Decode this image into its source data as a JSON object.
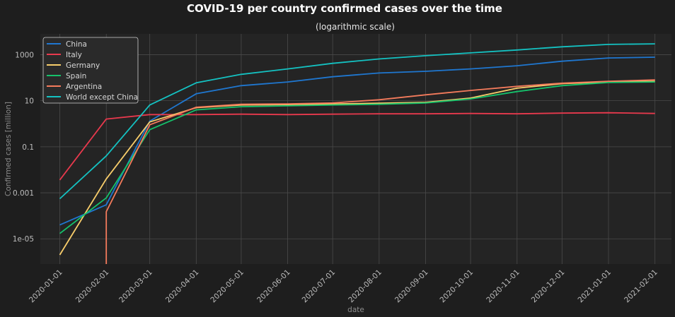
{
  "chart_data": {
    "type": "line",
    "title": "COVID-19 per country confirmed cases over the time",
    "subtitle": "(logarithmic scale)",
    "xlabel": "date",
    "ylabel": "Confirmed cases [million]",
    "yscale": "log",
    "ylim": [
      8e-07,
      8000
    ],
    "xlim": [
      "2019-12-19",
      "2021-02-12"
    ],
    "grid": true,
    "legend_position": "top-left",
    "x_ticks": [
      "2020-01-01",
      "2020-02-01",
      "2020-03-01",
      "2020-04-01",
      "2020-05-01",
      "2020-06-01",
      "2020-07-01",
      "2020-08-01",
      "2020-09-01",
      "2020-10-01",
      "2020-11-01",
      "2020-12-01",
      "2021-01-01",
      "2021-02-01"
    ],
    "y_ticks": [
      {
        "value": 1e-05,
        "label": "1e-05"
      },
      {
        "value": 0.001,
        "label": "0.001"
      },
      {
        "value": 0.1,
        "label": "0.1"
      },
      {
        "value": 10,
        "label": "10"
      },
      {
        "value": 1000,
        "label": "1000"
      }
    ],
    "x": [
      "2020-01-01",
      "2020-02-01",
      "2020-03-01",
      "2020-04-01",
      "2020-05-01",
      "2020-06-01",
      "2020-07-01",
      "2020-08-01",
      "2020-09-01",
      "2020-10-01",
      "2020-11-01",
      "2020-12-01",
      "2021-01-01",
      "2021-02-01"
    ],
    "series": [
      {
        "name": "China",
        "color": "#1f77d0",
        "values": [
          4e-05,
          0.0003,
          1.3,
          20,
          45,
          65,
          110,
          160,
          190,
          240,
          330,
          520,
          720,
          780
        ]
      },
      {
        "name": "Italy",
        "color": "#e8394d",
        "values": [
          0.0036,
          1.6,
          2.5,
          2.5,
          2.6,
          2.5,
          2.6,
          2.7,
          2.7,
          2.8,
          2.7,
          2.9,
          3.0,
          2.8
        ]
      },
      {
        "name": "Germany",
        "color": "#f8cd6b",
        "values": [
          2e-06,
          0.004,
          1.2,
          5,
          6.5,
          6.8,
          7.2,
          7.8,
          8.5,
          13,
          35,
          55,
          65,
          70
        ]
      },
      {
        "name": "Spain",
        "color": "#15c26b",
        "values": [
          1.7e-05,
          0.0006,
          0.55,
          4,
          5.5,
          6,
          6.5,
          7,
          8,
          12,
          25,
          45,
          62,
          65
        ]
      },
      {
        "name": "Argentina",
        "color": "#f47b5c",
        "values": [
          null,
          0.00015,
          0.9,
          5.2,
          7,
          7.3,
          8,
          11,
          18,
          28,
          42,
          58,
          70,
          80
        ]
      },
      {
        "name": "World except China",
        "color": "#14c2c2",
        "values": [
          0.00055,
          0.04,
          6.5,
          60,
          140,
          240,
          420,
          650,
          900,
          1200,
          1600,
          2200,
          2800,
          2950
        ]
      }
    ]
  }
}
